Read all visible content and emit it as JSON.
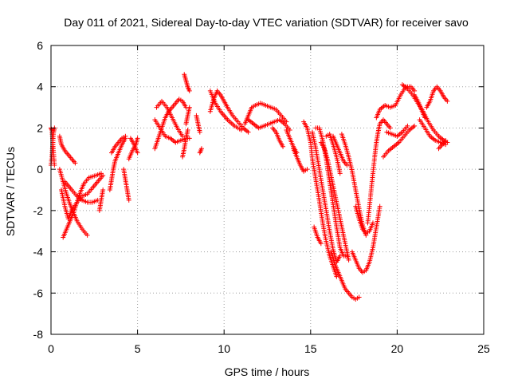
{
  "chart_data": {
    "type": "scatter",
    "title": "Day 011 of 2021, Sidereal Day-to-day VTEC variation (SDTVAR) for receiver savo",
    "xlabel": "GPS time / hours",
    "ylabel": "SDTVAR / TECUs",
    "xlim": [
      0,
      25
    ],
    "ylim": [
      -8,
      6
    ],
    "xticks": [
      "0",
      "5",
      "10",
      "15",
      "20",
      "25"
    ],
    "yticks": [
      "-8",
      "-6",
      "-4",
      "-2",
      "0",
      "2",
      "4",
      "6"
    ],
    "grid": true,
    "marker": "plus",
    "series_color": "#ff0000",
    "tracks": [
      [
        [
          0.0,
          2.0
        ],
        [
          0.05,
          1.9
        ],
        [
          0.1,
          1.4
        ],
        [
          0.15,
          0.8
        ],
        [
          0.2,
          0.2
        ]
      ],
      [
        [
          0.0,
          0.2
        ],
        [
          0.05,
          0.6
        ],
        [
          0.1,
          1.2
        ],
        [
          0.15,
          1.8
        ],
        [
          0.2,
          2.0
        ]
      ],
      [
        [
          0.5,
          1.6
        ],
        [
          0.6,
          1.2
        ],
        [
          0.8,
          0.9
        ],
        [
          1.0,
          0.7
        ],
        [
          1.2,
          0.5
        ],
        [
          1.4,
          0.3
        ]
      ],
      [
        [
          0.5,
          0.0
        ],
        [
          0.7,
          -0.6
        ],
        [
          0.9,
          -1.2
        ],
        [
          1.1,
          -1.7
        ],
        [
          1.3,
          -2.1
        ],
        [
          1.5,
          -2.5
        ],
        [
          1.8,
          -2.9
        ],
        [
          2.1,
          -3.2
        ]
      ],
      [
        [
          0.6,
          -1.0
        ],
        [
          0.8,
          -1.8
        ],
        [
          1.0,
          -2.4
        ],
        [
          1.2,
          -2.0
        ],
        [
          1.5,
          -1.6
        ],
        [
          1.8,
          -1.3
        ],
        [
          2.1,
          -1.2
        ],
        [
          2.4,
          -0.9
        ],
        [
          2.8,
          -0.5
        ],
        [
          3.0,
          -0.3
        ]
      ],
      [
        [
          0.7,
          -3.3
        ],
        [
          0.9,
          -2.9
        ],
        [
          1.1,
          -2.5
        ],
        [
          1.3,
          -2.1
        ],
        [
          1.5,
          -1.6
        ],
        [
          1.7,
          -1.1
        ],
        [
          1.9,
          -0.7
        ],
        [
          2.2,
          -0.4
        ],
        [
          2.6,
          -0.3
        ],
        [
          2.9,
          -0.2
        ]
      ],
      [
        [
          0.8,
          -0.6
        ],
        [
          1.0,
          -0.8
        ],
        [
          1.2,
          -1.0
        ],
        [
          1.5,
          -1.3
        ],
        [
          1.8,
          -1.5
        ],
        [
          2.1,
          -1.6
        ],
        [
          2.4,
          -1.6
        ],
        [
          2.7,
          -1.5
        ]
      ],
      [
        [
          2.8,
          -2.0
        ],
        [
          2.9,
          -1.5
        ],
        [
          3.0,
          -1.0
        ]
      ],
      [
        [
          3.4,
          -1.0
        ],
        [
          3.5,
          -0.5
        ],
        [
          3.6,
          0.0
        ],
        [
          3.7,
          0.4
        ],
        [
          3.9,
          0.8
        ],
        [
          4.1,
          1.2
        ],
        [
          4.3,
          1.5
        ]
      ],
      [
        [
          3.5,
          0.8
        ],
        [
          3.7,
          1.1
        ],
        [
          3.9,
          1.3
        ],
        [
          4.1,
          1.5
        ],
        [
          4.3,
          1.6
        ]
      ],
      [
        [
          4.2,
          0.0
        ],
        [
          4.3,
          -0.5
        ],
        [
          4.4,
          -1.0
        ],
        [
          4.5,
          -1.5
        ]
      ],
      [
        [
          4.5,
          0.5
        ],
        [
          4.7,
          0.9
        ],
        [
          4.9,
          1.2
        ],
        [
          5.0,
          1.5
        ]
      ],
      [
        [
          4.6,
          1.5
        ],
        [
          4.8,
          1.2
        ],
        [
          5.0,
          0.8
        ]
      ],
      [
        [
          6.0,
          1.0
        ],
        [
          6.2,
          1.5
        ],
        [
          6.4,
          2.0
        ],
        [
          6.6,
          2.5
        ],
        [
          6.8,
          2.8
        ],
        [
          7.0,
          3.0
        ],
        [
          7.2,
          3.2
        ],
        [
          7.4,
          3.4
        ],
        [
          7.6,
          3.3
        ],
        [
          7.8,
          3.0
        ]
      ],
      [
        [
          6.0,
          2.4
        ],
        [
          6.3,
          2.0
        ],
        [
          6.6,
          1.6
        ],
        [
          6.9,
          1.5
        ],
        [
          7.2,
          1.3
        ],
        [
          7.5,
          1.4
        ],
        [
          7.8,
          1.5
        ],
        [
          8.0,
          1.5
        ]
      ],
      [
        [
          6.1,
          3.0
        ],
        [
          6.4,
          3.3
        ],
        [
          6.7,
          3.0
        ],
        [
          7.0,
          2.5
        ],
        [
          7.3,
          2.0
        ],
        [
          7.6,
          1.6
        ]
      ],
      [
        [
          7.6,
          0.6
        ],
        [
          7.7,
          1.0
        ],
        [
          7.8,
          1.5
        ],
        [
          7.9,
          1.9
        ]
      ],
      [
        [
          7.7,
          4.6
        ],
        [
          7.8,
          4.3
        ],
        [
          7.9,
          4.0
        ],
        [
          8.0,
          3.8
        ]
      ],
      [
        [
          7.8,
          2.2
        ],
        [
          7.9,
          2.6
        ],
        [
          8.0,
          3.0
        ]
      ],
      [
        [
          8.4,
          2.6
        ],
        [
          8.5,
          2.2
        ],
        [
          8.6,
          1.8
        ]
      ],
      [
        [
          8.6,
          0.8
        ],
        [
          8.7,
          1.0
        ]
      ],
      [
        [
          9.2,
          2.8
        ],
        [
          9.4,
          3.4
        ],
        [
          9.6,
          3.8
        ],
        [
          9.8,
          3.6
        ],
        [
          10.0,
          3.3
        ],
        [
          10.2,
          3.0
        ],
        [
          10.5,
          2.6
        ],
        [
          10.8,
          2.3
        ],
        [
          11.1,
          2.0
        ],
        [
          11.4,
          1.8
        ]
      ],
      [
        [
          9.2,
          3.8
        ],
        [
          9.5,
          3.2
        ],
        [
          9.8,
          2.8
        ],
        [
          10.2,
          2.4
        ],
        [
          10.6,
          2.1
        ],
        [
          11.0,
          1.9
        ]
      ],
      [
        [
          11.2,
          2.2
        ],
        [
          11.4,
          2.6
        ],
        [
          11.6,
          3.0
        ],
        [
          11.8,
          3.1
        ],
        [
          12.1,
          3.2
        ],
        [
          12.4,
          3.1
        ],
        [
          12.7,
          3.0
        ],
        [
          13.0,
          2.9
        ],
        [
          13.3,
          2.6
        ],
        [
          13.6,
          2.3
        ]
      ],
      [
        [
          11.4,
          2.4
        ],
        [
          11.7,
          2.2
        ],
        [
          12.0,
          2.0
        ],
        [
          12.3,
          2.1
        ],
        [
          12.6,
          2.2
        ],
        [
          12.9,
          2.3
        ],
        [
          13.2,
          2.4
        ],
        [
          13.5,
          2.2
        ],
        [
          13.8,
          1.9
        ]
      ],
      [
        [
          12.8,
          2.0
        ],
        [
          13.0,
          1.8
        ],
        [
          13.2,
          1.4
        ],
        [
          13.4,
          1.1
        ]
      ],
      [
        [
          13.6,
          1.9
        ],
        [
          13.8,
          1.5
        ],
        [
          14.0,
          1.1
        ],
        [
          14.2,
          0.8
        ]
      ],
      [
        [
          14.0,
          1.0
        ],
        [
          14.2,
          0.6
        ],
        [
          14.4,
          0.2
        ],
        [
          14.6,
          -0.1
        ],
        [
          14.8,
          0.0
        ]
      ],
      [
        [
          14.6,
          2.3
        ],
        [
          14.8,
          2.0
        ],
        [
          15.0,
          1.3
        ],
        [
          15.1,
          0.5
        ],
        [
          15.3,
          -0.5
        ],
        [
          15.5,
          -1.5
        ],
        [
          15.7,
          -2.6
        ],
        [
          15.9,
          -3.5
        ],
        [
          16.1,
          -4.2
        ],
        [
          16.3,
          -4.7
        ],
        [
          16.5,
          -5.2
        ]
      ],
      [
        [
          15.1,
          1.8
        ],
        [
          15.3,
          1.0
        ],
        [
          15.5,
          0.0
        ],
        [
          15.7,
          -1.0
        ],
        [
          15.9,
          -2.0
        ],
        [
          16.1,
          -3.0
        ],
        [
          16.3,
          -3.9
        ],
        [
          16.5,
          -4.5
        ],
        [
          16.7,
          -4.2
        ]
      ],
      [
        [
          15.3,
          2.0
        ],
        [
          15.5,
          2.0
        ],
        [
          15.7,
          1.4
        ],
        [
          15.9,
          0.5
        ],
        [
          16.1,
          -0.6
        ],
        [
          16.3,
          -1.7
        ],
        [
          16.5,
          -2.8
        ],
        [
          16.7,
          -3.8
        ],
        [
          16.9,
          -4.2
        ],
        [
          17.1,
          -4.2
        ]
      ],
      [
        [
          15.6,
          1.3
        ],
        [
          15.8,
          1.0
        ],
        [
          16.0,
          0.4
        ],
        [
          16.2,
          -0.4
        ],
        [
          16.4,
          -1.2
        ],
        [
          16.6,
          -2.0
        ],
        [
          16.8,
          -2.8
        ],
        [
          17.0,
          -3.6
        ],
        [
          17.2,
          -4.4
        ]
      ],
      [
        [
          15.9,
          1.6
        ],
        [
          16.1,
          1.7
        ],
        [
          16.3,
          1.2
        ],
        [
          16.5,
          0.6
        ],
        [
          16.7,
          -0.2
        ]
      ],
      [
        [
          16.3,
          1.6
        ],
        [
          16.5,
          1.2
        ],
        [
          16.7,
          0.8
        ],
        [
          16.9,
          0.4
        ],
        [
          17.1,
          0.2
        ]
      ],
      [
        [
          16.8,
          1.7
        ],
        [
          17.0,
          1.2
        ],
        [
          17.2,
          0.6
        ],
        [
          17.4,
          -0.1
        ],
        [
          17.6,
          -1.0
        ],
        [
          17.8,
          -1.9
        ],
        [
          18.0,
          -2.7
        ],
        [
          18.2,
          -3.2
        ]
      ],
      [
        [
          15.2,
          -2.8
        ],
        [
          15.4,
          -3.3
        ],
        [
          15.6,
          -3.6
        ]
      ],
      [
        [
          16.2,
          -4.0
        ],
        [
          16.4,
          -4.6
        ],
        [
          16.6,
          -5.0
        ],
        [
          16.8,
          -5.4
        ],
        [
          17.0,
          -5.8
        ],
        [
          17.2,
          -6.0
        ],
        [
          17.4,
          -6.2
        ],
        [
          17.6,
          -6.3
        ],
        [
          17.8,
          -6.2
        ]
      ],
      [
        [
          17.4,
          -4.0
        ],
        [
          17.6,
          -4.4
        ],
        [
          17.8,
          -4.8
        ],
        [
          18.0,
          -5.0
        ],
        [
          18.2,
          -4.9
        ],
        [
          18.4,
          -4.5
        ],
        [
          18.6,
          -3.8
        ],
        [
          18.8,
          -2.8
        ],
        [
          19.0,
          -1.8
        ]
      ],
      [
        [
          17.6,
          -1.8
        ],
        [
          17.8,
          -2.4
        ],
        [
          18.0,
          -2.9
        ],
        [
          18.2,
          -3.1
        ],
        [
          18.4,
          -3.0
        ],
        [
          18.6,
          -2.6
        ]
      ],
      [
        [
          18.3,
          -2.6
        ],
        [
          18.4,
          -1.8
        ],
        [
          18.5,
          -1.0
        ],
        [
          18.6,
          -0.2
        ],
        [
          18.7,
          0.6
        ],
        [
          18.8,
          1.3
        ],
        [
          18.9,
          1.8
        ],
        [
          19.0,
          2.2
        ],
        [
          19.2,
          2.4
        ],
        [
          19.4,
          2.2
        ],
        [
          19.6,
          2.0
        ]
      ],
      [
        [
          18.8,
          2.5
        ],
        [
          19.0,
          2.9
        ],
        [
          19.3,
          3.1
        ],
        [
          19.6,
          3.0
        ],
        [
          19.9,
          3.1
        ],
        [
          20.2,
          3.6
        ],
        [
          20.5,
          4.0
        ],
        [
          20.8,
          4.0
        ],
        [
          21.0,
          3.8
        ]
      ],
      [
        [
          19.2,
          0.6
        ],
        [
          19.5,
          0.9
        ],
        [
          19.8,
          1.1
        ],
        [
          20.1,
          1.3
        ],
        [
          20.4,
          1.6
        ],
        [
          20.7,
          1.9
        ],
        [
          21.0,
          2.1
        ]
      ],
      [
        [
          19.4,
          1.8
        ],
        [
          19.7,
          1.7
        ],
        [
          20.0,
          1.6
        ],
        [
          20.3,
          1.8
        ],
        [
          20.6,
          2.1
        ]
      ],
      [
        [
          20.3,
          4.1
        ],
        [
          20.6,
          3.9
        ],
        [
          20.9,
          3.6
        ],
        [
          21.2,
          3.2
        ],
        [
          21.5,
          2.8
        ],
        [
          21.8,
          2.3
        ],
        [
          22.1,
          1.9
        ],
        [
          22.4,
          1.6
        ],
        [
          22.7,
          1.4
        ],
        [
          22.9,
          1.3
        ]
      ],
      [
        [
          21.0,
          3.6
        ],
        [
          21.2,
          3.3
        ],
        [
          21.4,
          2.9
        ],
        [
          21.6,
          2.5
        ]
      ],
      [
        [
          21.3,
          2.4
        ],
        [
          21.6,
          2.0
        ],
        [
          21.9,
          1.6
        ],
        [
          22.2,
          1.4
        ],
        [
          22.5,
          1.3
        ],
        [
          22.8,
          1.2
        ]
      ],
      [
        [
          21.7,
          3.0
        ],
        [
          21.9,
          3.3
        ],
        [
          22.1,
          3.8
        ],
        [
          22.3,
          4.0
        ],
        [
          22.5,
          3.8
        ],
        [
          22.7,
          3.5
        ],
        [
          22.9,
          3.3
        ]
      ],
      [
        [
          22.4,
          1.0
        ],
        [
          22.6,
          1.2
        ],
        [
          22.8,
          1.4
        ]
      ]
    ]
  }
}
